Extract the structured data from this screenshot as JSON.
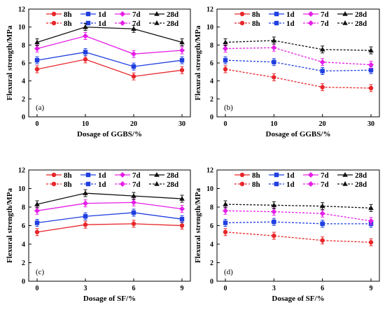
{
  "chart_data": [
    {
      "type": "line",
      "panel_label": "(a)",
      "xlabel": "Dosage of GGBS/%",
      "ylabel": "Flexural strength/MPa",
      "x": [
        0,
        10,
        20,
        30
      ],
      "xticks": [
        0,
        10,
        20,
        30
      ],
      "ylim": [
        0,
        12
      ],
      "yticks": [
        0,
        2,
        4,
        6,
        8,
        10,
        12
      ],
      "grid": false,
      "legend_location": "top",
      "series": [
        {
          "name": "8h",
          "values": [
            5.3,
            6.4,
            4.5,
            5.2
          ],
          "color": "#e8262a",
          "marker": "circle",
          "dashed": false
        },
        {
          "name": "1d",
          "values": [
            6.3,
            7.2,
            5.6,
            6.3
          ],
          "color": "#1f3fe0",
          "marker": "square",
          "dashed": false
        },
        {
          "name": "7d",
          "values": [
            7.6,
            9.0,
            7.0,
            7.4
          ],
          "color": "#e61ee6",
          "marker": "diamond",
          "dashed": false
        },
        {
          "name": "28d",
          "values": [
            8.3,
            10.0,
            9.8,
            8.3
          ],
          "color": "#111111",
          "marker": "triangle",
          "dashed": false
        }
      ],
      "legend_dashed_entries": [
        "8h",
        "1d",
        "7d",
        "28d"
      ]
    },
    {
      "type": "line",
      "panel_label": "(b)",
      "xlabel": "Dosage of GGBS/%",
      "ylabel": "Flexural strength/MPa",
      "x": [
        0,
        10,
        20,
        30
      ],
      "xticks": [
        0,
        10,
        20,
        30
      ],
      "ylim": [
        0,
        12
      ],
      "yticks": [
        0,
        2,
        4,
        6,
        8,
        10,
        12
      ],
      "grid": false,
      "legend_location": "top",
      "series": [
        {
          "name": "8h",
          "values": [
            5.3,
            4.4,
            3.3,
            3.2
          ],
          "color": "#e8262a",
          "marker": "circle",
          "dashed": true
        },
        {
          "name": "1d",
          "values": [
            6.3,
            6.1,
            5.1,
            5.2
          ],
          "color": "#1f3fe0",
          "marker": "square",
          "dashed": true
        },
        {
          "name": "7d",
          "values": [
            7.6,
            7.7,
            6.1,
            5.8
          ],
          "color": "#e61ee6",
          "marker": "diamond",
          "dashed": true
        },
        {
          "name": "28d",
          "values": [
            8.3,
            8.5,
            7.5,
            7.4
          ],
          "color": "#111111",
          "marker": "triangle",
          "dashed": true
        }
      ],
      "legend_solid_entries": [
        "8h",
        "1d",
        "7d",
        "28d"
      ]
    },
    {
      "type": "line",
      "panel_label": "(c)",
      "xlabel": "Dosage of SF/%",
      "ylabel": "Flexural strength/MPa",
      "x": [
        0,
        3,
        6,
        9
      ],
      "xticks": [
        0,
        3,
        6,
        9
      ],
      "ylim": [
        0,
        12
      ],
      "yticks": [
        0,
        2,
        4,
        6,
        8,
        10,
        12
      ],
      "grid": false,
      "legend_location": "top",
      "series": [
        {
          "name": "8h",
          "values": [
            5.3,
            6.1,
            6.2,
            6.0
          ],
          "color": "#e8262a",
          "marker": "circle",
          "dashed": false
        },
        {
          "name": "1d",
          "values": [
            6.3,
            7.0,
            7.4,
            6.7
          ],
          "color": "#1f3fe0",
          "marker": "square",
          "dashed": false
        },
        {
          "name": "7d",
          "values": [
            7.6,
            8.4,
            8.5,
            7.8
          ],
          "color": "#e61ee6",
          "marker": "diamond",
          "dashed": false
        },
        {
          "name": "28d",
          "values": [
            8.3,
            9.5,
            9.2,
            8.9
          ],
          "color": "#111111",
          "marker": "triangle",
          "dashed": false
        }
      ],
      "legend_dashed_entries": [
        "8h",
        "1d",
        "7d",
        "28d"
      ]
    },
    {
      "type": "line",
      "panel_label": "(d)",
      "xlabel": "Dosage of SF/%",
      "ylabel": "Flexural strength/MPa",
      "x": [
        0,
        3,
        6,
        9
      ],
      "xticks": [
        0,
        3,
        6,
        9
      ],
      "ylim": [
        0,
        12
      ],
      "yticks": [
        0,
        2,
        4,
        6,
        8,
        10,
        12
      ],
      "grid": false,
      "legend_location": "top",
      "series": [
        {
          "name": "8h",
          "values": [
            5.3,
            4.9,
            4.4,
            4.2
          ],
          "color": "#e8262a",
          "marker": "circle",
          "dashed": true
        },
        {
          "name": "1d",
          "values": [
            6.3,
            6.4,
            6.2,
            6.2
          ],
          "color": "#1f3fe0",
          "marker": "square",
          "dashed": true
        },
        {
          "name": "7d",
          "values": [
            7.6,
            7.5,
            7.3,
            6.5
          ],
          "color": "#e61ee6",
          "marker": "diamond",
          "dashed": true
        },
        {
          "name": "28d",
          "values": [
            8.3,
            8.2,
            8.1,
            7.9
          ],
          "color": "#111111",
          "marker": "triangle",
          "dashed": true
        }
      ],
      "legend_solid_entries": [
        "8h",
        "1d",
        "7d",
        "28d"
      ]
    }
  ]
}
